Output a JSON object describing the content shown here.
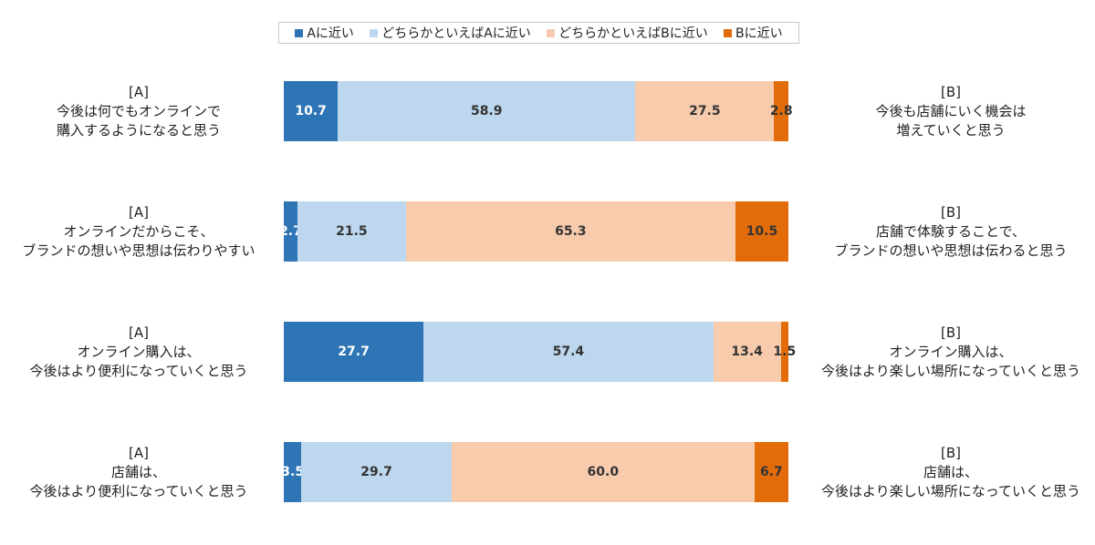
{
  "chart_data": {
    "type": "bar",
    "orientation": "horizontal",
    "stacked": "percent",
    "xlim": [
      0,
      100
    ],
    "legend_position": "top",
    "series": [
      {
        "name": "Aに近い",
        "color": "#2e75b6",
        "text_color": "#ffffff",
        "values": [
          10.7,
          2.7,
          27.7,
          3.5
        ]
      },
      {
        "name": "どちらかといえばAに近い",
        "color": "#bdd7ee",
        "text_color": "#333333",
        "values": [
          58.9,
          21.5,
          57.4,
          29.7
        ]
      },
      {
        "name": "どちらかといえばBに近い",
        "color": "#f8cbad",
        "text_color": "#333333",
        "values": [
          27.5,
          65.3,
          13.4,
          60.0
        ]
      },
      {
        "name": "Bに近い",
        "color": "#e36c0a",
        "text_color": "#333333",
        "values": [
          2.8,
          10.5,
          1.5,
          6.7
        ]
      }
    ],
    "rows": [
      {
        "left_label": [
          "[A]",
          "今後は何でもオンラインで",
          "購入するようになると思う"
        ],
        "right_label": [
          "[B]",
          "今後も店舗にいく機会は",
          "増えていくと思う"
        ]
      },
      {
        "left_label": [
          "[A]",
          "オンラインだからこそ、",
          "ブランドの想いや思想は伝わりやすい"
        ],
        "right_label": [
          "[B]",
          "店舗で体験することで、",
          "ブランドの想いや思想は伝わると思う"
        ]
      },
      {
        "left_label": [
          "[A]",
          "オンライン購入は、",
          "今後はより便利になっていくと思う"
        ],
        "right_label": [
          "[B]",
          "オンライン購入は、",
          "今後はより楽しい場所になっていくと思う"
        ]
      },
      {
        "left_label": [
          "[A]",
          "店舗は、",
          "今後はより便利になっていくと思う"
        ],
        "right_label": [
          "[B]",
          "店舗は、",
          "今後はより楽しい場所になっていくと思う"
        ]
      }
    ]
  }
}
